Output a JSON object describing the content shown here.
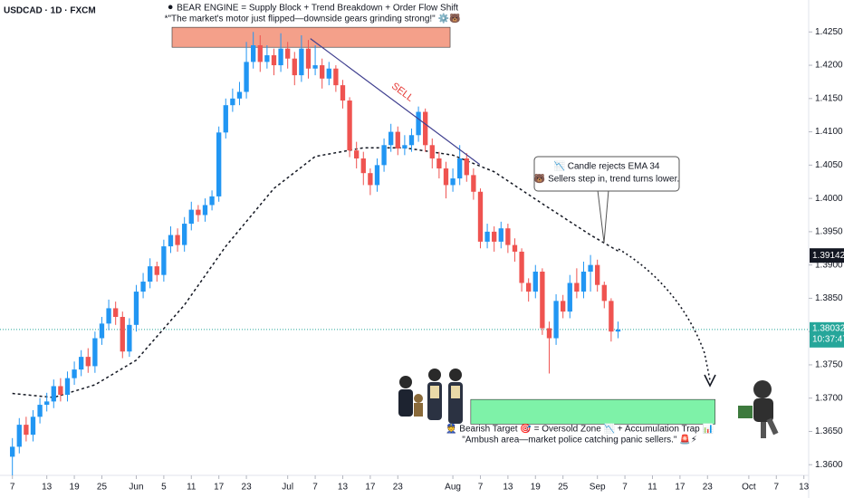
{
  "chart_data": {
    "type": "candlestick",
    "symbol": "USDCAD · 1D · FXCM",
    "title": "⚫ BEAR ENGINE = Supply Block + Trend Breakdown + Order Flow Shift",
    "subtitle": "*\"The market's motor just flipped—downside gears grinding strong!\" ⚙️🐻",
    "up_color": "#2196f3",
    "down_color": "#ef5350",
    "open": [
      1.3612,
      1.3627,
      1.366,
      1.3645,
      1.3672,
      1.369,
      1.3695,
      1.3718,
      1.3705,
      1.373,
      1.3743,
      1.3762,
      1.3748,
      1.379,
      1.3812,
      1.3835,
      1.3822,
      1.377,
      1.381,
      1.386,
      1.3875,
      1.3898,
      1.3885,
      1.3928,
      1.3945,
      1.393,
      1.3962,
      1.3983,
      1.3975,
      1.399,
      1.4003,
      1.4099,
      1.414,
      1.415,
      1.416,
      1.4205,
      1.423,
      1.4205,
      1.4215,
      1.42,
      1.4225,
      1.421,
      1.4185,
      1.4225,
      1.4195,
      1.42,
      1.418,
      1.4195,
      1.417,
      1.4147,
      1.4072,
      1.406,
      1.4038,
      1.402,
      1.405,
      1.408,
      1.41,
      1.4075,
      1.408,
      1.4095,
      1.413,
      1.408,
      1.406,
      1.4045,
      1.402,
      1.403,
      1.406,
      1.4035,
      1.401,
      1.3935,
      1.395,
      1.3935,
      1.3955,
      1.393,
      1.392,
      1.3873,
      1.386,
      1.389,
      1.3805,
      1.379,
      1.3846,
      1.383,
      1.3873,
      1.386,
      1.389,
      1.39,
      1.387,
      1.3846,
      1.38
    ],
    "high": [
      1.364,
      1.367,
      1.3672,
      1.3682,
      1.37,
      1.3708,
      1.3728,
      1.373,
      1.374,
      1.3755,
      1.3772,
      1.3775,
      1.38,
      1.3822,
      1.3848,
      1.3845,
      1.383,
      1.382,
      1.387,
      1.3888,
      1.391,
      1.3905,
      1.3938,
      1.3958,
      1.3955,
      1.3972,
      1.3995,
      1.399,
      1.4,
      1.4012,
      1.4108,
      1.415,
      1.4165,
      1.4175,
      1.4235,
      1.425,
      1.4245,
      1.423,
      1.4225,
      1.4248,
      1.4235,
      1.422,
      1.4245,
      1.4238,
      1.423,
      1.421,
      1.4205,
      1.42,
      1.4178,
      1.4152,
      1.4085,
      1.407,
      1.4045,
      1.406,
      1.409,
      1.4112,
      1.4108,
      1.4095,
      1.4105,
      1.4138,
      1.4135,
      1.409,
      1.407,
      1.4055,
      1.4045,
      1.408,
      1.4068,
      1.4045,
      1.4015,
      1.3962,
      1.3958,
      1.3965,
      1.3962,
      1.394,
      1.3925,
      1.388,
      1.39,
      1.3895,
      1.3815,
      1.3856,
      1.3855,
      1.3885,
      1.3895,
      1.3905,
      1.3915,
      1.3908,
      1.3875,
      1.385,
      1.3815
    ],
    "low": [
      1.3584,
      1.3617,
      1.3635,
      1.3635,
      1.3662,
      1.368,
      1.3685,
      1.3695,
      1.3695,
      1.372,
      1.3733,
      1.3738,
      1.3738,
      1.378,
      1.3802,
      1.381,
      1.376,
      1.3762,
      1.38,
      1.385,
      1.3865,
      1.3875,
      1.3875,
      1.3918,
      1.392,
      1.392,
      1.3952,
      1.3965,
      1.3965,
      1.3982,
      1.3995,
      1.409,
      1.413,
      1.414,
      1.415,
      1.4195,
      1.419,
      1.4195,
      1.4185,
      1.419,
      1.4195,
      1.417,
      1.4175,
      1.418,
      1.4185,
      1.4165,
      1.417,
      1.416,
      1.4135,
      1.4062,
      1.4045,
      1.402,
      1.4005,
      1.401,
      1.404,
      1.407,
      1.4065,
      1.4065,
      1.407,
      1.4085,
      1.407,
      1.4045,
      1.403,
      1.4,
      1.401,
      1.402,
      1.4025,
      1.3998,
      1.3925,
      1.3925,
      1.392,
      1.3925,
      1.3918,
      1.3905,
      1.386,
      1.3845,
      1.385,
      1.3795,
      1.3737,
      1.378,
      1.382,
      1.382,
      1.385,
      1.385,
      1.386,
      1.386,
      1.3835,
      1.3785,
      1.379
    ],
    "close": [
      1.3627,
      1.366,
      1.3645,
      1.3672,
      1.369,
      1.3695,
      1.3718,
      1.3705,
      1.373,
      1.3743,
      1.3762,
      1.3748,
      1.379,
      1.3812,
      1.3835,
      1.3822,
      1.377,
      1.381,
      1.386,
      1.3875,
      1.3898,
      1.3885,
      1.3928,
      1.3945,
      1.393,
      1.3962,
      1.3983,
      1.3975,
      1.399,
      1.4003,
      1.4099,
      1.414,
      1.415,
      1.416,
      1.4205,
      1.423,
      1.4205,
      1.4215,
      1.42,
      1.4225,
      1.421,
      1.4185,
      1.4225,
      1.4195,
      1.42,
      1.418,
      1.4195,
      1.417,
      1.4147,
      1.4072,
      1.406,
      1.4038,
      1.402,
      1.405,
      1.408,
      1.41,
      1.4075,
      1.408,
      1.4095,
      1.413,
      1.408,
      1.406,
      1.4045,
      1.402,
      1.403,
      1.406,
      1.4035,
      1.401,
      1.3935,
      1.395,
      1.3935,
      1.3955,
      1.393,
      1.392,
      1.3873,
      1.386,
      1.389,
      1.3805,
      1.379,
      1.3846,
      1.383,
      1.3873,
      1.386,
      1.389,
      1.39,
      1.387,
      1.3846,
      1.38,
      1.3803
    ],
    "ema": {
      "color": "#131722",
      "x": [
        0,
        6,
        12,
        18,
        25,
        31,
        38,
        44,
        51,
        57,
        64,
        70,
        77,
        84,
        88
      ],
      "values": [
        1.3707,
        1.3701,
        1.372,
        1.3757,
        1.384,
        1.3928,
        1.4015,
        1.4063,
        1.4076,
        1.4076,
        1.4065,
        1.404,
        1.3992,
        1.3945,
        1.3921
      ]
    },
    "xlim": [
      -1.8,
      115.7
    ],
    "xticks": [
      {
        "value": 0,
        "label": "7"
      },
      {
        "value": 5,
        "label": "13"
      },
      {
        "value": 9,
        "label": "19"
      },
      {
        "value": 13,
        "label": "25"
      },
      {
        "value": 18,
        "label": "Jun"
      },
      {
        "value": 22,
        "label": "5"
      },
      {
        "value": 26,
        "label": "11"
      },
      {
        "value": 30,
        "label": "17"
      },
      {
        "value": 34,
        "label": "23"
      },
      {
        "value": 40,
        "label": "Jul"
      },
      {
        "value": 44,
        "label": "7"
      },
      {
        "value": 48,
        "label": "13"
      },
      {
        "value": 52,
        "label": "17"
      },
      {
        "value": 56,
        "label": "23"
      },
      {
        "value": 64,
        "label": "Aug"
      },
      {
        "value": 68,
        "label": "7"
      },
      {
        "value": 72,
        "label": "13"
      },
      {
        "value": 76,
        "label": "19"
      },
      {
        "value": 80,
        "label": "25"
      },
      {
        "value": 85,
        "label": "Sep"
      },
      {
        "value": 89,
        "label": "7"
      },
      {
        "value": 93,
        "label": "11"
      },
      {
        "value": 97,
        "label": "17"
      },
      {
        "value": 101,
        "label": "23"
      },
      {
        "value": 107,
        "label": "Oct"
      },
      {
        "value": 111,
        "label": "7"
      },
      {
        "value": 115,
        "label": "13"
      }
    ],
    "ylim": [
      1.3584,
      1.4298
    ],
    "yticks": [
      {
        "value": 1.36,
        "label": "1.3600"
      },
      {
        "value": 1.365,
        "label": "1.3650"
      },
      {
        "value": 1.37,
        "label": "1.3700"
      },
      {
        "value": 1.375,
        "label": "1.3750"
      },
      {
        "value": 1.38,
        "label": "1.3800"
      },
      {
        "value": 1.385,
        "label": "1.3850"
      },
      {
        "value": 1.39,
        "label": "1.3900"
      },
      {
        "value": 1.395,
        "label": "1.3950"
      },
      {
        "value": 1.4,
        "label": "1.4000"
      },
      {
        "value": 1.405,
        "label": "1.4050"
      },
      {
        "value": 1.41,
        "label": "1.4100"
      },
      {
        "value": 1.415,
        "label": "1.4150"
      },
      {
        "value": 1.42,
        "label": "1.4200"
      },
      {
        "value": 1.425,
        "label": "1.4250"
      }
    ],
    "ema_price": 1.39142,
    "last_price": 1.38032,
    "countdown": "10:37:47",
    "supply_zone": {
      "x": [
        23.2,
        63.6
      ],
      "low": 1.4227,
      "high": 1.4257
    },
    "target_zone": {
      "x": [
        66.6,
        102.1
      ],
      "low": 1.3661,
      "high": 1.3698
    },
    "trend_line": {
      "x": [
        43.3,
        67.9
      ],
      "y": [
        1.424,
        1.4051
      ],
      "label": "SELL"
    },
    "callout": [
      "📉 Candle rejects EMA 34",
      "🐻 Sellers step in, trend turns lower."
    ],
    "target_note": [
      "👮 Bearish Target 🎯 = Oversold Zone 📉 + Accumulation Trap 📊",
      "\"Ambush area—market police catching panic sellers.\" 🚨⚡"
    ]
  }
}
